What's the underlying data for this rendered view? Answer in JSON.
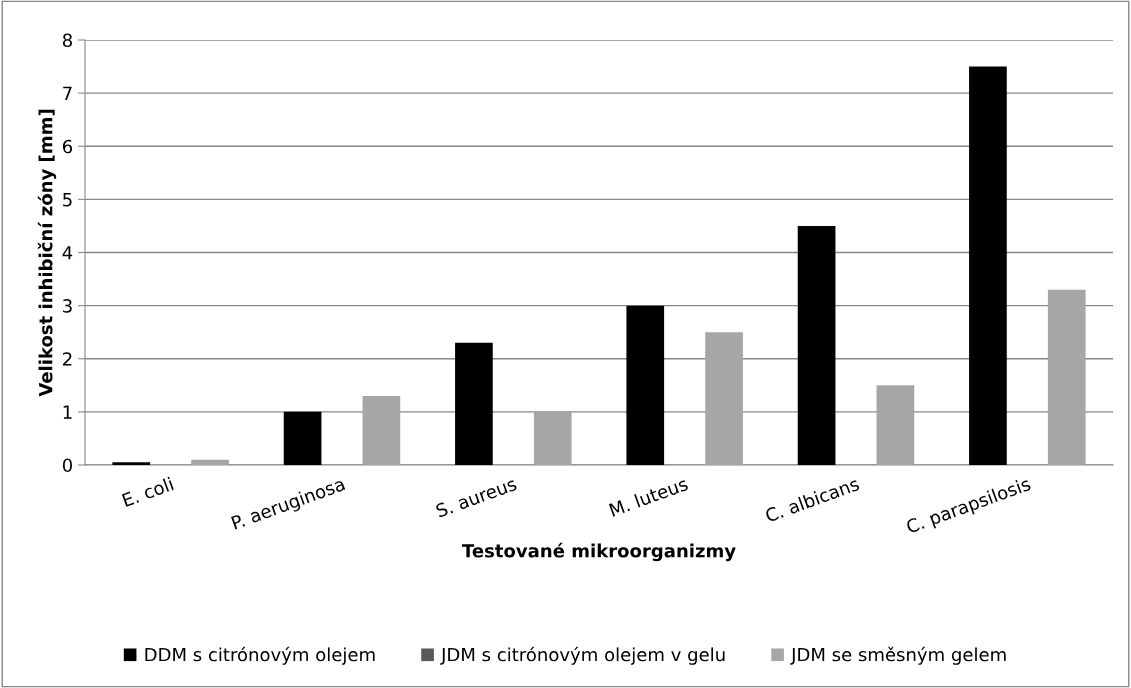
{
  "chart_data": {
    "type": "bar",
    "xlabel": "Testované mikroorganizmy",
    "ylabel": "Velikost inhibiční zóny [mm]",
    "categories": [
      "E. coli",
      "P. aeruginosa",
      "S. aureus",
      "M. luteus",
      "C. albicans",
      "C. parapsilosis"
    ],
    "series": [
      {
        "name": "DDM s citrónovým olejem",
        "color": "#000000",
        "values": [
          0.05,
          1.0,
          2.3,
          3.0,
          4.5,
          7.5
        ]
      },
      {
        "name": "JDM s citrónovým olejem v gelu",
        "color": "#595959",
        "values": [
          0,
          0,
          0,
          0,
          0,
          0
        ]
      },
      {
        "name": "JDM se směsným gelem",
        "color": "#a6a6a6",
        "values": [
          0.1,
          1.3,
          1.0,
          2.5,
          1.5,
          3.3
        ]
      }
    ],
    "ylim": [
      0,
      8
    ],
    "yticks": [
      0,
      1,
      2,
      3,
      4,
      5,
      6,
      7,
      8
    ],
    "grid": "y",
    "legend": "bottom"
  }
}
